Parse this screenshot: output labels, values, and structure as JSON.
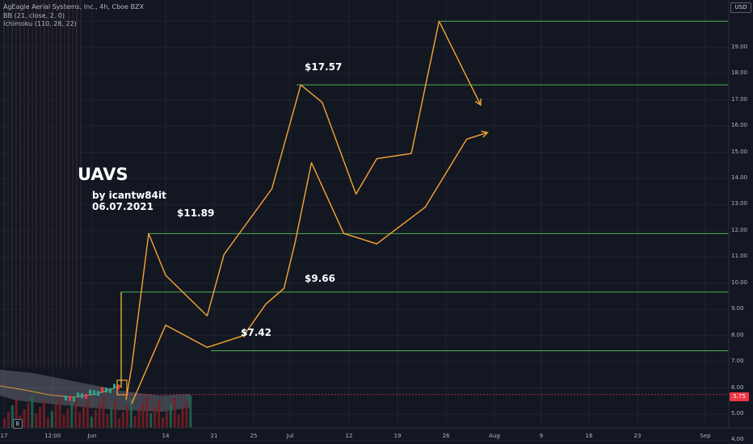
{
  "legend": {
    "symbol": "AgEagle Aerial Systems, Inc., 4h, Cboe BZX",
    "bb": "BB (21, close, 2, 0)",
    "ichimoku": "Ichimoku (110, 28, 22)"
  },
  "annotations": {
    "ticker": "UAVS",
    "author": "by icantw84it",
    "date": "06.07.2021"
  },
  "currency": "USD",
  "last_price": "5.75",
  "earnings_badge": "E",
  "colors": {
    "background": "#131722",
    "projection_line": "#f7a531",
    "level_line": "#4caf50",
    "last_price": "#f23645",
    "ichimoku_cloud": "#b2b5be"
  },
  "chart_data": {
    "type": "line",
    "y_scale": "linear",
    "ylim": [
      4.0,
      20.1
    ],
    "y_ticks": [
      "4.00",
      "5.00",
      "6.00",
      "7.00",
      "8.00",
      "9.00",
      "10.00",
      "11.00",
      "12.00",
      "13.00",
      "14.00",
      "15.00",
      "16.00",
      "17.00",
      "18.00",
      "19.00"
    ],
    "x_ticks": [
      {
        "label": "17",
        "date": "2021-05-17"
      },
      {
        "label": "12:00",
        "date": "2021-05-24T12:00"
      },
      {
        "label": "Jun",
        "date": "2021-06-01"
      },
      {
        "label": "14",
        "date": "2021-06-14"
      },
      {
        "label": "21",
        "date": "2021-06-21"
      },
      {
        "label": "25",
        "date": "2021-06-25"
      },
      {
        "label": "Jul",
        "date": "2021-07-01"
      },
      {
        "label": "12",
        "date": "2021-07-12"
      },
      {
        "label": "19",
        "date": "2021-07-19"
      },
      {
        "label": "26",
        "date": "2021-07-26"
      },
      {
        "label": "Aug",
        "date": "2021-08-02"
      },
      {
        "label": "9",
        "date": "2021-08-09"
      },
      {
        "label": "16",
        "date": "2021-08-16"
      },
      {
        "label": "23",
        "date": "2021-08-23"
      },
      {
        "label": "Sep",
        "date": "2021-09-01"
      }
    ],
    "price_levels": [
      {
        "value": 17.57,
        "label": "$17.57"
      },
      {
        "value": 11.89,
        "label": "$11.89"
      },
      {
        "value": 9.66,
        "label": "$9.66"
      },
      {
        "value": 7.42,
        "label": "$7.42"
      },
      {
        "value": 20.0,
        "label": ""
      }
    ],
    "current_level": 5.75,
    "series": [
      {
        "role": "upper projection path",
        "points": [
          {
            "x": "2021-06-07",
            "y": 5.55
          },
          {
            "x": "2021-06-08",
            "y": 6.8
          },
          {
            "x": "2021-06-11",
            "y": 11.89
          },
          {
            "x": "2021-06-14",
            "y": 10.3
          },
          {
            "x": "2021-06-20",
            "y": 8.75
          },
          {
            "x": "2021-06-22",
            "y": 11.1
          },
          {
            "x": "2021-06-28",
            "y": 13.6
          },
          {
            "x": "2021-07-03",
            "y": 17.57
          },
          {
            "x": "2021-07-07",
            "y": 16.9
          },
          {
            "x": "2021-07-13",
            "y": 13.4
          },
          {
            "x": "2021-07-16",
            "y": 14.75
          },
          {
            "x": "2021-07-21",
            "y": 14.95
          },
          {
            "x": "2021-07-25",
            "y": 20.0
          },
          {
            "x": "2021-07-31",
            "y": 16.8
          }
        ]
      },
      {
        "role": "lower projection path",
        "points": [
          {
            "x": "2021-06-08",
            "y": 5.4
          },
          {
            "x": "2021-06-14",
            "y": 8.4
          },
          {
            "x": "2021-06-20",
            "y": 7.55
          },
          {
            "x": "2021-06-24",
            "y": 8.0
          },
          {
            "x": "2021-06-27",
            "y": 9.2
          },
          {
            "x": "2021-06-30",
            "y": 9.8
          },
          {
            "x": "2021-07-02",
            "y": 11.6
          },
          {
            "x": "2021-07-05",
            "y": 14.6
          },
          {
            "x": "2021-07-11",
            "y": 11.9
          },
          {
            "x": "2021-07-16",
            "y": 11.5
          },
          {
            "x": "2021-07-23",
            "y": 12.9
          },
          {
            "x": "2021-07-29",
            "y": 15.5
          },
          {
            "x": "2021-08-01",
            "y": 15.75
          }
        ]
      }
    ]
  }
}
